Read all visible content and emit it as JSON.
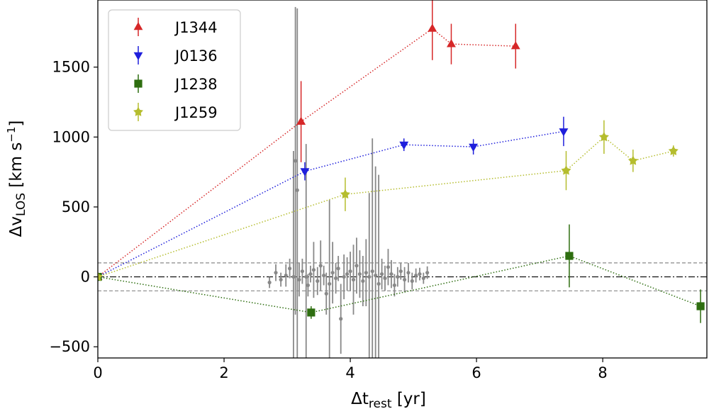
{
  "chart_data": {
    "type": "scatter",
    "xlabel": "Δt",
    "xlabel_sub": "rest",
    "xlabel_unit": " [yr]",
    "ylabel": "Δv",
    "ylabel_sub": "LOS",
    "ylabel_unit": " [km s",
    "ylabel_sup": "−1",
    "ylabel_close": "]",
    "xlim": [
      0,
      9.65
    ],
    "ylim": [
      -580,
      1980
    ],
    "xticks": [
      0,
      2,
      4,
      6,
      8
    ],
    "yticks": [
      -500,
      0,
      500,
      1000,
      1500
    ],
    "ytick_labels": [
      "−500",
      "0",
      "500",
      "1000",
      "1500"
    ],
    "hlines": [
      {
        "y": 100,
        "style": "dashed",
        "color": "#888888"
      },
      {
        "y": -100,
        "style": "dashed",
        "color": "#888888"
      },
      {
        "y": 0,
        "style": "dashdot",
        "color": "#000000"
      }
    ],
    "legend_position": "top-left",
    "series": [
      {
        "name": "J1344",
        "color": "#d62728",
        "marker": "triangle-up",
        "points": [
          {
            "x": 0,
            "y": 0,
            "err": 0
          },
          {
            "x": 3.22,
            "y": 1110,
            "err": 290
          },
          {
            "x": 5.3,
            "y": 1775,
            "err": 225
          },
          {
            "x": 5.6,
            "y": 1665,
            "err": 145
          },
          {
            "x": 6.62,
            "y": 1650,
            "err": 160
          }
        ]
      },
      {
        "name": "J0136",
        "color": "#1f1fdc",
        "marker": "triangle-down",
        "points": [
          {
            "x": 0,
            "y": 0,
            "err": 0
          },
          {
            "x": 3.28,
            "y": 755,
            "err": 65
          },
          {
            "x": 4.85,
            "y": 945,
            "err": 45
          },
          {
            "x": 5.95,
            "y": 930,
            "err": 55
          },
          {
            "x": 7.38,
            "y": 1040,
            "err": 105
          }
        ]
      },
      {
        "name": "J1238",
        "color": "#2e6e10",
        "marker": "square",
        "points": [
          {
            "x": 0,
            "y": 0,
            "err": 0
          },
          {
            "x": 3.38,
            "y": -255,
            "err": 45
          },
          {
            "x": 7.47,
            "y": 150,
            "err": 225
          },
          {
            "x": 9.55,
            "y": -210,
            "err": 120
          }
        ]
      },
      {
        "name": "J1259",
        "color": "#b5bd2e",
        "marker": "star",
        "points": [
          {
            "x": 0,
            "y": 0,
            "err": 0
          },
          {
            "x": 3.92,
            "y": 590,
            "err": 120
          },
          {
            "x": 7.42,
            "y": 760,
            "err": 140
          },
          {
            "x": 8.02,
            "y": 1000,
            "err": 120
          },
          {
            "x": 8.48,
            "y": 830,
            "err": 80
          },
          {
            "x": 9.12,
            "y": 900,
            "err": 40
          }
        ]
      }
    ],
    "background_points": {
      "color": "#888888",
      "points": [
        {
          "x": 2.72,
          "y": -40,
          "err": 40
        },
        {
          "x": 2.82,
          "y": 30,
          "err": 60
        },
        {
          "x": 2.9,
          "y": -20,
          "err": 50
        },
        {
          "x": 2.98,
          "y": 10,
          "err": 80
        },
        {
          "x": 3.04,
          "y": 60,
          "err": 70
        },
        {
          "x": 3.1,
          "y": 0,
          "err": 900
        },
        {
          "x": 3.13,
          "y": 830,
          "err": 1100
        },
        {
          "x": 3.16,
          "y": 620,
          "err": 1300
        },
        {
          "x": 3.19,
          "y": -20,
          "err": 120
        },
        {
          "x": 3.24,
          "y": 40,
          "err": 90
        },
        {
          "x": 3.3,
          "y": 0,
          "err": 950
        },
        {
          "x": 3.33,
          "y": -60,
          "err": 80
        },
        {
          "x": 3.37,
          "y": 20,
          "err": 60
        },
        {
          "x": 3.42,
          "y": 50,
          "err": 200
        },
        {
          "x": 3.48,
          "y": -30,
          "err": 100
        },
        {
          "x": 3.53,
          "y": 80,
          "err": 180
        },
        {
          "x": 3.58,
          "y": 10,
          "err": 70
        },
        {
          "x": 3.62,
          "y": -120,
          "err": 150
        },
        {
          "x": 3.67,
          "y": -50,
          "err": 600
        },
        {
          "x": 3.72,
          "y": 30,
          "err": 220
        },
        {
          "x": 3.77,
          "y": -10,
          "err": 110
        },
        {
          "x": 3.81,
          "y": 60,
          "err": 90
        },
        {
          "x": 3.85,
          "y": -300,
          "err": 250
        },
        {
          "x": 3.9,
          "y": 0,
          "err": 160
        },
        {
          "x": 3.95,
          "y": 20,
          "err": 120
        },
        {
          "x": 4.0,
          "y": 40,
          "err": 140
        },
        {
          "x": 4.05,
          "y": -20,
          "err": 250
        },
        {
          "x": 4.1,
          "y": 80,
          "err": 200
        },
        {
          "x": 4.15,
          "y": 20,
          "err": 170
        },
        {
          "x": 4.2,
          "y": -30,
          "err": 180
        },
        {
          "x": 4.25,
          "y": 30,
          "err": 240
        },
        {
          "x": 4.3,
          "y": 0,
          "err": 600
        },
        {
          "x": 4.35,
          "y": 40,
          "err": 950
        },
        {
          "x": 4.4,
          "y": 10,
          "err": 780
        },
        {
          "x": 4.45,
          "y": -50,
          "err": 780
        },
        {
          "x": 4.5,
          "y": 20,
          "err": 110
        },
        {
          "x": 4.55,
          "y": -10,
          "err": 90
        },
        {
          "x": 4.6,
          "y": 70,
          "err": 130
        },
        {
          "x": 4.65,
          "y": 20,
          "err": 100
        },
        {
          "x": 4.7,
          "y": -60,
          "err": 80
        },
        {
          "x": 4.75,
          "y": 0,
          "err": 70
        },
        {
          "x": 4.8,
          "y": 40,
          "err": 60
        },
        {
          "x": 4.86,
          "y": -20,
          "err": 90
        },
        {
          "x": 4.92,
          "y": 30,
          "err": 70
        },
        {
          "x": 4.98,
          "y": -30,
          "err": 60
        },
        {
          "x": 5.04,
          "y": 10,
          "err": 50
        },
        {
          "x": 5.1,
          "y": 20,
          "err": 45
        },
        {
          "x": 5.16,
          "y": -10,
          "err": 40
        },
        {
          "x": 5.22,
          "y": 30,
          "err": 45
        }
      ]
    }
  }
}
